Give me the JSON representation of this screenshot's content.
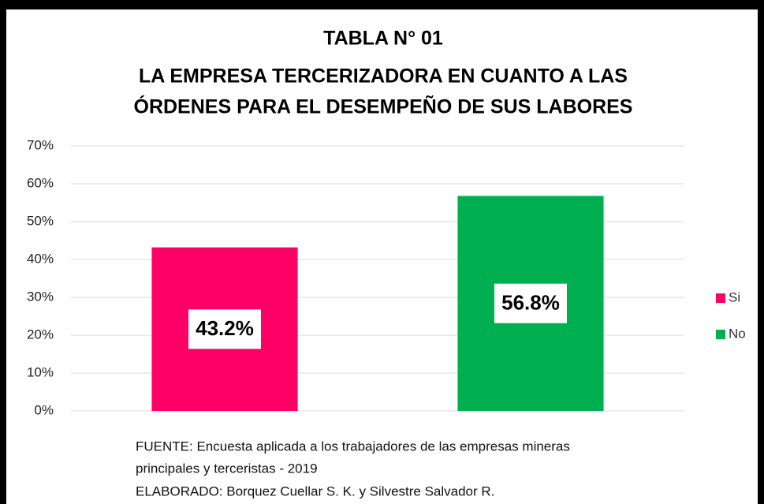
{
  "chart_data": {
    "type": "bar",
    "title": [
      "TABLA N° 01",
      "LA EMPRESA TERCERIZADORA EN CUANTO A LAS",
      "ÓRDENES PARA EL DESEMPEÑO DE SUS LABORES"
    ],
    "categories": [
      null
    ],
    "series": [
      {
        "name": "Si",
        "color": "#ff0066",
        "values": [
          43.2
        ],
        "value_labels": [
          "43.2%"
        ]
      },
      {
        "name": "No",
        "color": "#00b050",
        "values": [
          56.8
        ],
        "value_labels": [
          "56.8%"
        ]
      }
    ],
    "ylim": [
      0,
      70
    ],
    "yticks": [
      {
        "value": 0,
        "label": "0%"
      },
      {
        "value": 10,
        "label": "10%"
      },
      {
        "value": 20,
        "label": "20%"
      },
      {
        "value": 30,
        "label": "30%"
      },
      {
        "value": 40,
        "label": "40%"
      },
      {
        "value": 50,
        "label": "50%"
      },
      {
        "value": 60,
        "label": "60%"
      },
      {
        "value": 70,
        "label": "70%"
      }
    ],
    "grid": true,
    "legend": "right",
    "notes": [
      "FUENTE: Encuesta aplicada a los trabajadores de las empresas mineras",
      "principales y terceristas - 2019",
      "ELABORADO: Borquez Cuellar S. K. y Silvestre Salvador R."
    ]
  }
}
